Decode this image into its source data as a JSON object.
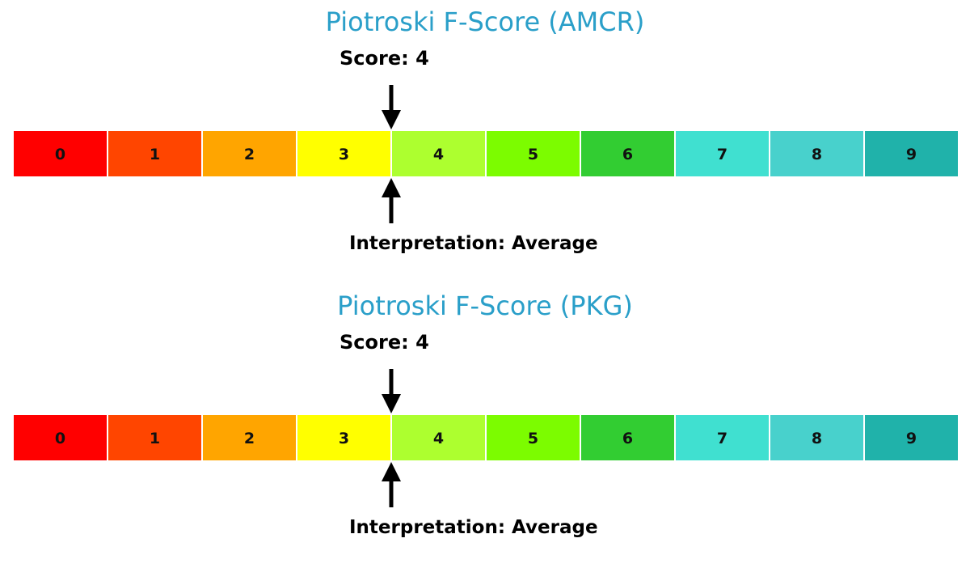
{
  "chart_data": [
    {
      "type": "gauge",
      "title": "Piotroski F-Score (AMCR)",
      "score_label": "Score: 4",
      "interpretation_label": "Interpretation: Average",
      "score": 4,
      "categories": [
        "0",
        "1",
        "2",
        "3",
        "4",
        "5",
        "6",
        "7",
        "8",
        "9"
      ],
      "colors": [
        "#ff0000",
        "#ff4500",
        "#ffa500",
        "#ffff00",
        "#adff2f",
        "#7cfc00",
        "#32cd32",
        "#40e0d0",
        "#48d1cc",
        "#20b2aa"
      ]
    },
    {
      "type": "gauge",
      "title": "Piotroski F-Score (PKG)",
      "score_label": "Score: 4",
      "interpretation_label": "Interpretation: Average",
      "score": 4,
      "categories": [
        "0",
        "1",
        "2",
        "3",
        "4",
        "5",
        "6",
        "7",
        "8",
        "9"
      ],
      "colors": [
        "#ff0000",
        "#ff4500",
        "#ffa500",
        "#ffff00",
        "#adff2f",
        "#7cfc00",
        "#32cd32",
        "#40e0d0",
        "#48d1cc",
        "#20b2aa"
      ]
    }
  ]
}
